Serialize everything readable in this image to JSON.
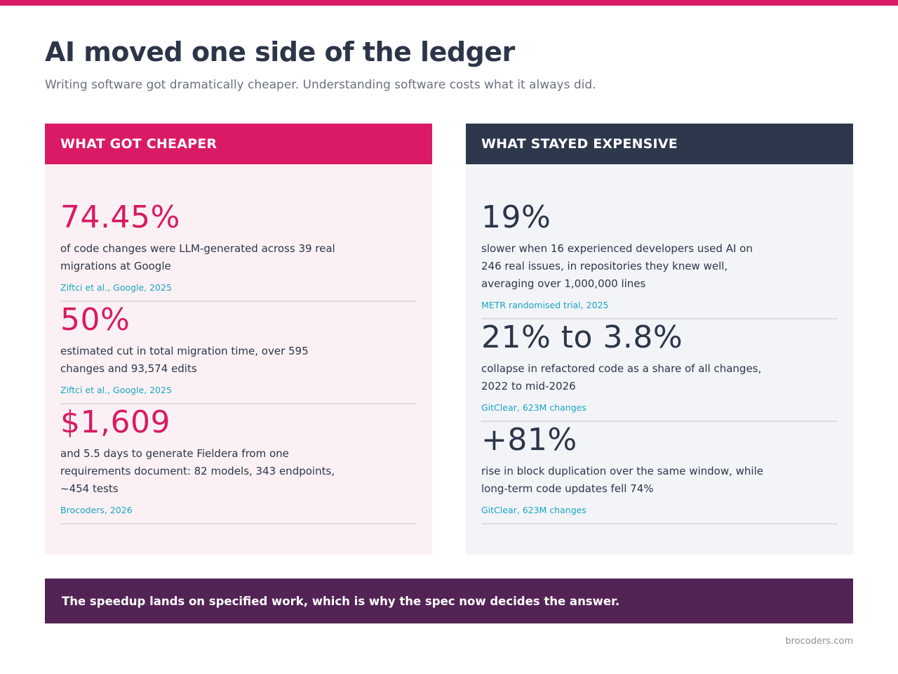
{
  "header": {
    "title": "AI moved one side of the ledger",
    "subtitle": "Writing software got dramatically cheaper. Understanding software costs what it always did."
  },
  "colors": {
    "accent": "#da1a66",
    "dark": "#2d384d",
    "banner": "#522354",
    "source": "#1ba5c4"
  },
  "left_panel": {
    "heading": "WHAT GOT CHEAPER",
    "stats": [
      {
        "value": "74.45%",
        "description": "of code changes were LLM-generated across 39 real migrations at Google",
        "source": "Ziftci et al., Google, 2025"
      },
      {
        "value": "50%",
        "description": "estimated cut in total migration time, over 595 changes and 93,574 edits",
        "source": "Ziftci et al., Google, 2025"
      },
      {
        "value": "$1,609",
        "description": "and 5.5 days to generate Fieldera from one requirements document: 82 models, 343 endpoints, ~454 tests",
        "source": "Brocoders, 2026"
      }
    ]
  },
  "right_panel": {
    "heading": "WHAT STAYED EXPENSIVE",
    "stats": [
      {
        "value": "19%",
        "description": "slower when 16 experienced developers used AI on 246 real issues, in repositories they knew well, averaging over 1,000,000 lines",
        "source": "METR randomised trial, 2025"
      },
      {
        "value": "21% to 3.8%",
        "description": "collapse in refactored code as a share of all changes, 2022 to mid-2026",
        "source": "GitClear, 623M changes"
      },
      {
        "value": "+81%",
        "description": "rise in block duplication over the same window, while long-term code updates fell 74%",
        "source": "GitClear, 623M changes"
      }
    ]
  },
  "footer": {
    "banner": "The speedup lands on specified work, which is why the spec now decides the answer.",
    "site": "brocoders.com"
  }
}
